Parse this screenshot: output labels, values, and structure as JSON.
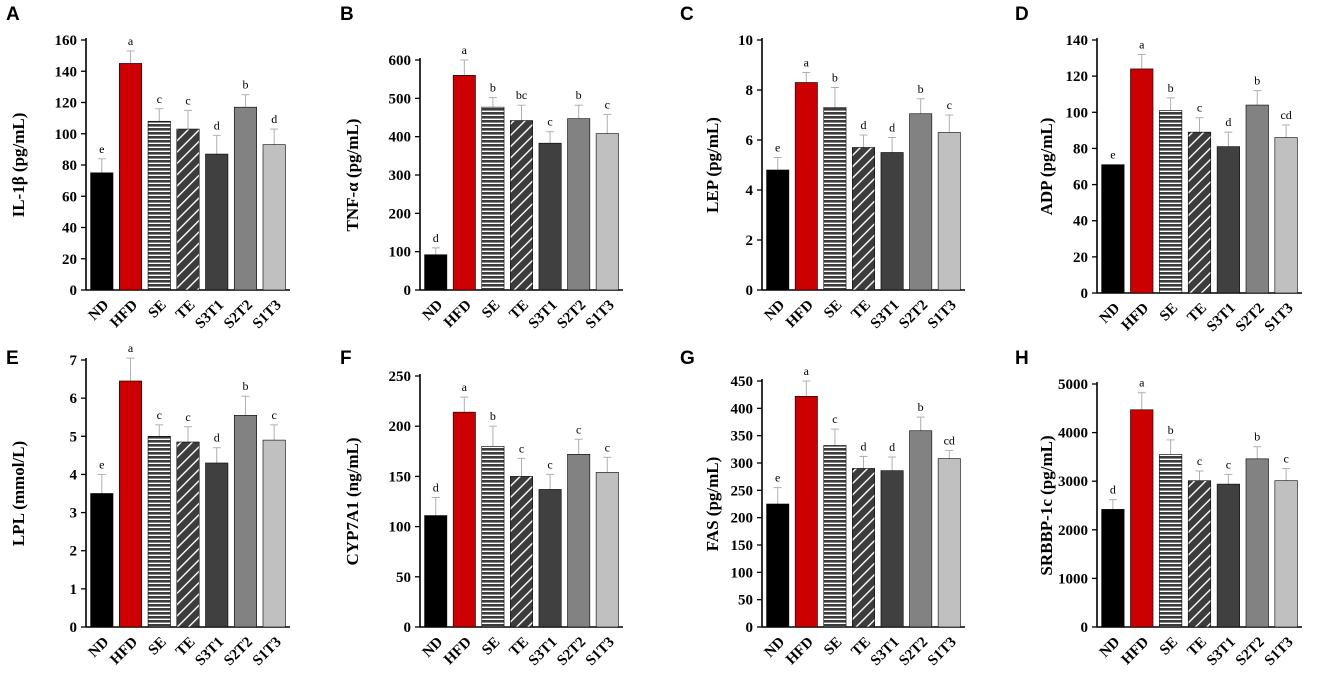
{
  "figure": {
    "categories": [
      "ND",
      "HFD",
      "SE",
      "TE",
      "S3T1",
      "S2T2",
      "S1T3"
    ],
    "group_styles": [
      {
        "group": "ND",
        "color": "#000000",
        "pattern": "solid"
      },
      {
        "group": "HFD",
        "color": "#cc0000",
        "pattern": "solid"
      },
      {
        "group": "SE",
        "color": "#3c3c3c",
        "pattern": "horizontal-lines"
      },
      {
        "group": "TE",
        "color": "#3c3c3c",
        "pattern": "diagonal-lines"
      },
      {
        "group": "S3T1",
        "color": "#404040",
        "pattern": "solid"
      },
      {
        "group": "S2T2",
        "color": "#828282",
        "pattern": "solid"
      },
      {
        "group": "S1T3",
        "color": "#c0c0c0",
        "pattern": "solid"
      }
    ]
  },
  "chart_data": [
    {
      "type": "bar",
      "panel": "A",
      "ylabel": "IL-1β (pg/mL)",
      "ylim": [
        0,
        160
      ],
      "yticks": [
        0,
        20,
        40,
        60,
        80,
        100,
        120,
        140,
        160
      ],
      "categories": [
        "ND",
        "HFD",
        "SE",
        "TE",
        "S3T1",
        "S2T2",
        "S1T3"
      ],
      "values": [
        75,
        145,
        108,
        103,
        87,
        117,
        93
      ],
      "errors": [
        9,
        8,
        8,
        12,
        12,
        8,
        10
      ],
      "letters": [
        "e",
        "a",
        "c",
        "c",
        "d",
        "b",
        "d"
      ]
    },
    {
      "type": "bar",
      "panel": "B",
      "ylabel": "TNF-α (pg/mL)",
      "ylim": [
        0,
        600
      ],
      "yticks": [
        0,
        100,
        200,
        300,
        400,
        500,
        600
      ],
      "categories": [
        "ND",
        "HFD",
        "SE",
        "TE",
        "S3T1",
        "S2T2",
        "S1T3"
      ],
      "values": [
        92,
        560,
        477,
        442,
        383,
        447,
        408
      ],
      "errors": [
        18,
        40,
        25,
        40,
        30,
        35,
        50
      ],
      "letters": [
        "d",
        "a",
        "b",
        "bc",
        "c",
        "b",
        "c"
      ]
    },
    {
      "type": "bar",
      "panel": "C",
      "ylabel": "LEP (pg/mL)",
      "ylim": [
        0,
        10
      ],
      "yticks": [
        0,
        2,
        4,
        6,
        8,
        10
      ],
      "categories": [
        "ND",
        "HFD",
        "SE",
        "TE",
        "S3T1",
        "S2T2",
        "S1T3"
      ],
      "values": [
        4.8,
        8.3,
        7.3,
        5.7,
        5.5,
        7.05,
        6.3
      ],
      "errors": [
        0.5,
        0.4,
        0.8,
        0.5,
        0.6,
        0.6,
        0.7
      ],
      "letters": [
        "e",
        "a",
        "b",
        "d",
        "d",
        "b",
        "c"
      ]
    },
    {
      "type": "bar",
      "panel": "D",
      "ylabel": "ADP (pg/mL)",
      "ylim": [
        0,
        140
      ],
      "yticks": [
        0,
        20,
        40,
        60,
        80,
        100,
        120,
        140
      ],
      "categories": [
        "ND",
        "HFD",
        "SE",
        "TE",
        "S3T1",
        "S2T2",
        "S1T3"
      ],
      "values": [
        71,
        124,
        101,
        89,
        81,
        104,
        86
      ],
      "errors": [
        0,
        8,
        7,
        8,
        8,
        8,
        7
      ],
      "letters": [
        "e",
        "a",
        "b",
        "c",
        "d",
        "b",
        "cd"
      ]
    },
    {
      "type": "bar",
      "panel": "E",
      "ylabel": "LPL (mmol/L)",
      "ylim": [
        0,
        7
      ],
      "yticks": [
        0,
        1,
        2,
        3,
        4,
        5,
        6,
        7
      ],
      "categories": [
        "ND",
        "HFD",
        "SE",
        "TE",
        "S3T1",
        "S2T2",
        "S1T3"
      ],
      "values": [
        3.5,
        6.45,
        5.0,
        4.85,
        4.3,
        5.55,
        4.9
      ],
      "errors": [
        0.5,
        0.6,
        0.3,
        0.4,
        0.4,
        0.5,
        0.4
      ],
      "letters": [
        "e",
        "a",
        "c",
        "c",
        "d",
        "b",
        "c"
      ]
    },
    {
      "type": "bar",
      "panel": "F",
      "ylabel": "CYP7A1 (ng/mL)",
      "ylim": [
        0,
        250
      ],
      "yticks": [
        0,
        50,
        100,
        150,
        200,
        250
      ],
      "categories": [
        "ND",
        "HFD",
        "SE",
        "TE",
        "S3T1",
        "S2T2",
        "S1T3"
      ],
      "values": [
        111,
        214,
        180,
        150,
        137,
        172,
        154
      ],
      "errors": [
        18,
        15,
        20,
        18,
        15,
        15,
        15
      ],
      "letters": [
        "d",
        "a",
        "b",
        "c",
        "c",
        "c",
        "c"
      ]
    },
    {
      "type": "bar",
      "panel": "G",
      "ylabel": "FAS (pg/mL)",
      "ylim": [
        0,
        450
      ],
      "yticks": [
        0,
        50,
        100,
        150,
        200,
        250,
        300,
        350,
        400,
        450
      ],
      "categories": [
        "ND",
        "HFD",
        "SE",
        "TE",
        "S3T1",
        "S2T2",
        "S1T3"
      ],
      "values": [
        225,
        422,
        332,
        290,
        286,
        359,
        308
      ],
      "errors": [
        30,
        28,
        30,
        22,
        25,
        25,
        15
      ],
      "letters": [
        "e",
        "a",
        "c",
        "d",
        "d",
        "b",
        "cd"
      ]
    },
    {
      "type": "bar",
      "panel": "H",
      "ylabel": "SRBBP-1c (pg/mL)",
      "ylim": [
        0,
        5000
      ],
      "yticks": [
        0,
        1000,
        2000,
        3000,
        4000,
        5000
      ],
      "categories": [
        "ND",
        "HFD",
        "SE",
        "TE",
        "S3T1",
        "S2T2",
        "S1T3"
      ],
      "values": [
        2420,
        4470,
        3550,
        3010,
        2940,
        3460,
        3010
      ],
      "errors": [
        200,
        350,
        300,
        200,
        200,
        250,
        250
      ],
      "letters": [
        "d",
        "a",
        "b",
        "c",
        "c",
        "b",
        "c"
      ]
    }
  ]
}
